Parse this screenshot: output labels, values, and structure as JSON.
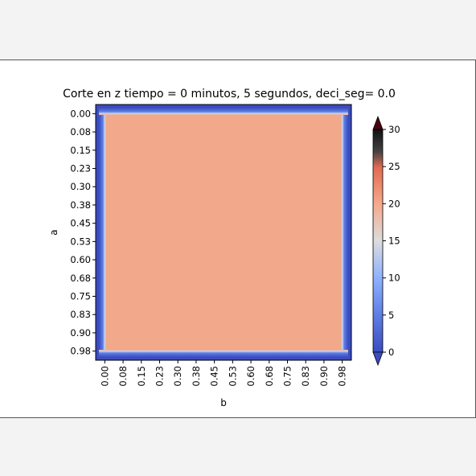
{
  "chart_data": {
    "type": "heatmap",
    "title": "Corte en z  tiempo =  0 minutos, 5 segundos, deci_seg= 0.0",
    "xlabel": "b",
    "ylabel": "a",
    "x_tick_labels": [
      "0.00",
      "0.08",
      "0.15",
      "0.23",
      "0.30",
      "0.38",
      "0.45",
      "0.53",
      "0.60",
      "0.68",
      "0.75",
      "0.83",
      "0.90",
      "0.98"
    ],
    "y_tick_labels": [
      "0.00",
      "0.08",
      "0.15",
      "0.23",
      "0.30",
      "0.38",
      "0.45",
      "0.53",
      "0.60",
      "0.68",
      "0.75",
      "0.83",
      "0.90",
      "0.98"
    ],
    "interior_value": 22,
    "boundary_value": 0,
    "colorbar": {
      "ticks": [
        0,
        5,
        10,
        15,
        20,
        25,
        30
      ],
      "range": [
        0,
        30
      ],
      "extend": "both",
      "colormap": "coolwarm"
    }
  },
  "colors": {
    "low": "#3b4cc0",
    "mid": "#dddddd",
    "high": "#b40426",
    "under": "#3b4cc0",
    "over": "#4a0010",
    "interior": "#f2a88a"
  }
}
